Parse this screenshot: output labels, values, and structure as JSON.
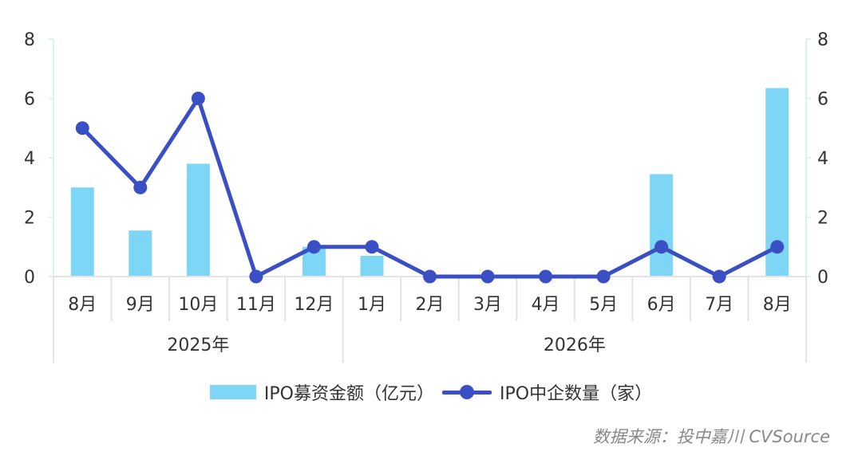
{
  "chart_data": {
    "type": "bar+line",
    "categories": [
      "8月",
      "9月",
      "10月",
      "11月",
      "12月",
      "1月",
      "2月",
      "3月",
      "4月",
      "5月",
      "6月",
      "7月",
      "8月"
    ],
    "year_groups": [
      {
        "label": "2025年",
        "count": 5
      },
      {
        "label": "2026年",
        "count": 8
      }
    ],
    "series": [
      {
        "name": "IPO募资金额（亿元）",
        "type": "bar",
        "axis": "left",
        "color": "#7dd6f6",
        "values": [
          3.0,
          1.55,
          3.8,
          0,
          1.0,
          0.7,
          0,
          0,
          0,
          0,
          3.45,
          0,
          6.35
        ]
      },
      {
        "name": "IPO中企数量（家）",
        "type": "line",
        "axis": "right",
        "color": "#3b4fc4",
        "values": [
          5,
          3,
          6,
          0,
          1,
          1,
          0,
          0,
          0,
          0,
          1,
          0,
          1
        ]
      }
    ],
    "ylim_left": [
      0,
      8
    ],
    "ylim_right": [
      0,
      8
    ],
    "yticks": [
      0,
      2,
      4,
      6,
      8
    ],
    "legend_position": "bottom"
  },
  "legend": {
    "bar_label": "IPO募资金额（亿元）",
    "line_label": "IPO中企数量（家）"
  },
  "source": "数据来源：投中嘉川 CVSource"
}
